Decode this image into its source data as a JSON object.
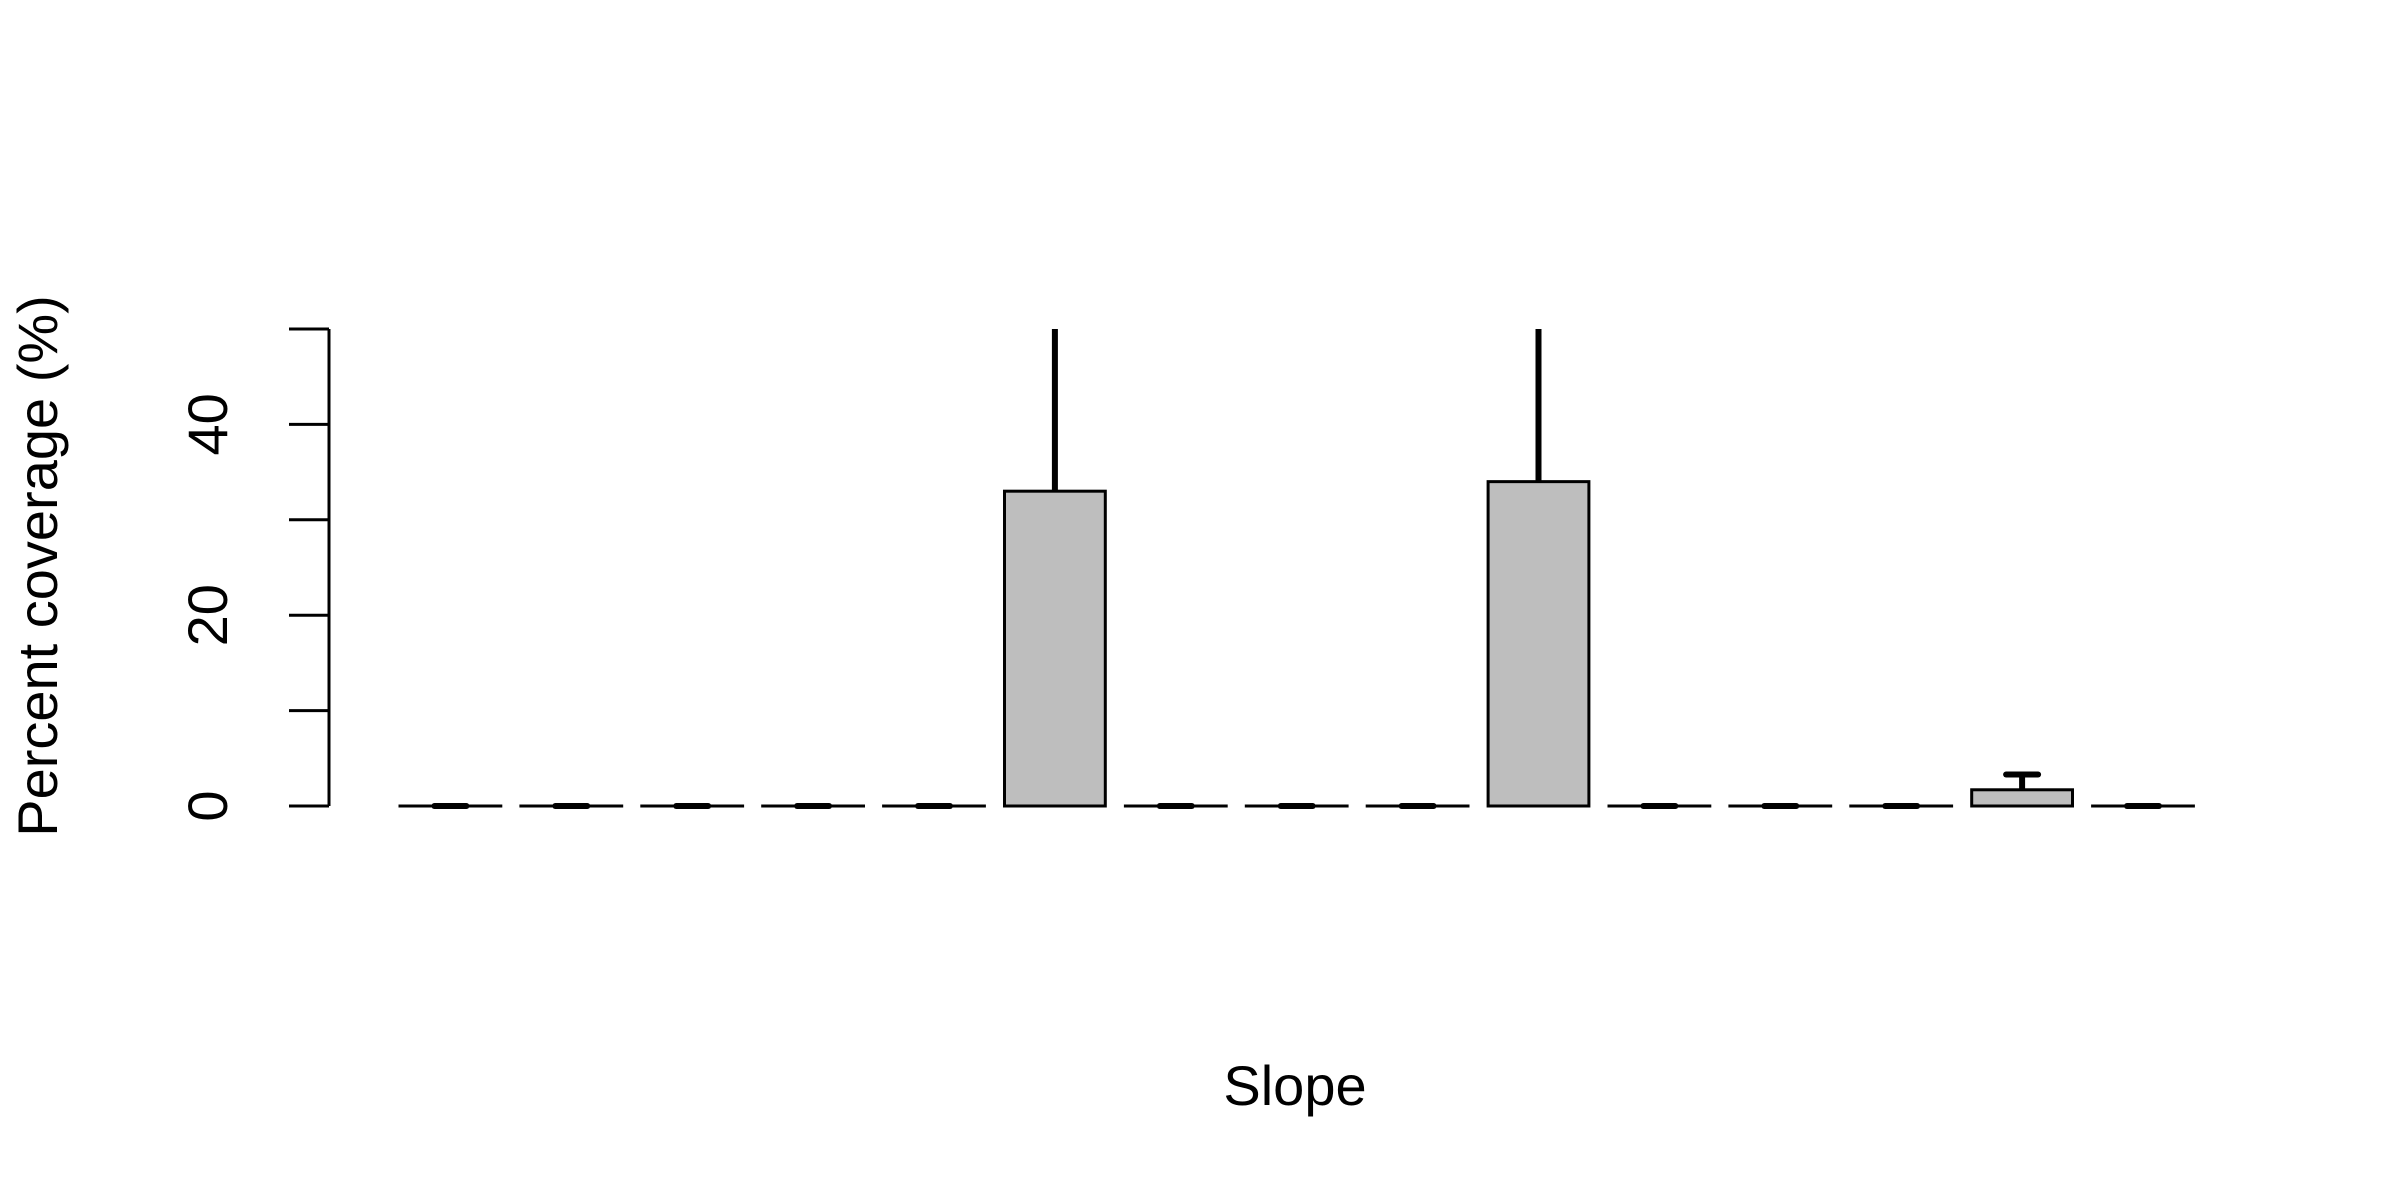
{
  "chart_data": {
    "type": "bar",
    "x_label": "Slope",
    "y_label": "Percent coverage (%)",
    "categories": [
      null,
      null,
      null,
      null,
      null,
      null,
      null,
      null,
      null,
      null,
      null,
      null,
      null,
      null,
      null
    ],
    "values": [
      0,
      0,
      0,
      0,
      0,
      33,
      0,
      0,
      0,
      34,
      0,
      0,
      0,
      1.7,
      0
    ],
    "errors": [
      0,
      0,
      0,
      0,
      0,
      20,
      0,
      0,
      0,
      20,
      0,
      0,
      0,
      1.6,
      0
    ],
    "color": "#bebebe",
    "ylim": [
      0,
      50
    ],
    "yticks": [
      0,
      20,
      40
    ],
    "yminorticks": [
      10,
      30,
      50
    ],
    "grid": false
  }
}
